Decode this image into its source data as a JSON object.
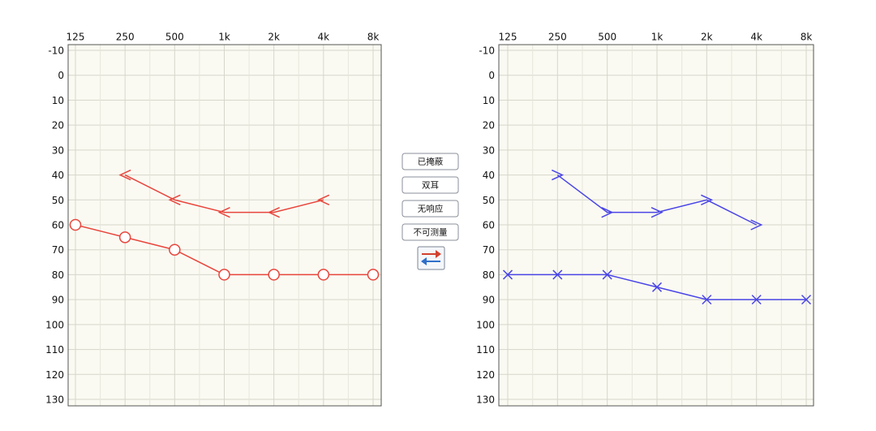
{
  "chart_data": [
    {
      "type": "line",
      "categories": [
        "125",
        "250",
        "500",
        "1k",
        "2k",
        "4k",
        "8k"
      ],
      "ylim": [
        -10,
        130
      ],
      "yticks": [
        -10,
        0,
        10,
        20,
        30,
        40,
        50,
        60,
        70,
        80,
        90,
        100,
        110,
        120,
        130
      ],
      "reversed": true,
      "grid": true,
      "series": [
        {
          "color": "#e8453c",
          "marker": "o",
          "values": [
            60,
            65,
            70,
            80,
            80,
            80,
            80
          ]
        },
        {
          "color": "#e8453c",
          "marker": "<",
          "values": [
            null,
            40,
            50,
            55,
            55,
            50,
            null
          ]
        }
      ]
    },
    {
      "type": "line",
      "categories": [
        "125",
        "250",
        "500",
        "1k",
        "2k",
        "4k",
        "8k"
      ],
      "ylim": [
        -10,
        130
      ],
      "yticks": [
        -10,
        0,
        10,
        20,
        30,
        40,
        50,
        60,
        70,
        80,
        90,
        100,
        110,
        120,
        130
      ],
      "reversed": true,
      "grid": true,
      "series": [
        {
          "color": "#4a45e6",
          "marker": "x",
          "values": [
            80,
            80,
            80,
            85,
            90,
            90,
            90
          ]
        },
        {
          "color": "#4a45e6",
          "marker": ">",
          "values": [
            null,
            40,
            55,
            55,
            50,
            60,
            null
          ]
        }
      ]
    }
  ],
  "buttons": [
    "已掩蔽",
    "双耳",
    "无响应",
    "不可测量"
  ]
}
